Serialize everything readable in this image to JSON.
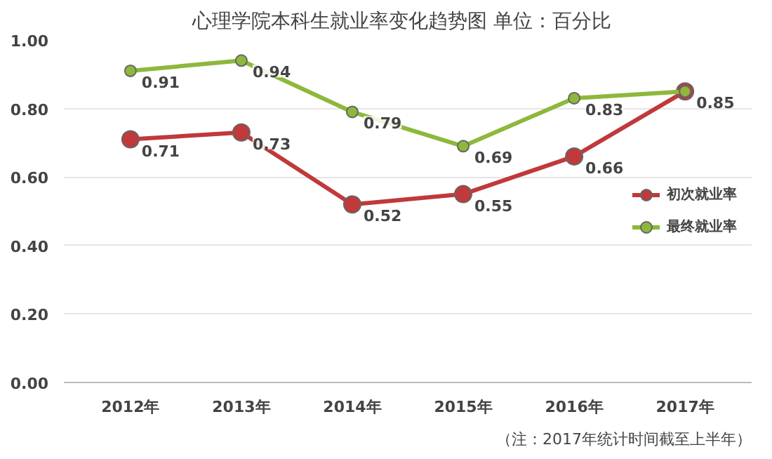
{
  "chart_data": {
    "type": "line",
    "title": "心理学院本科生就业率变化趋势图   单位：百分比",
    "categories": [
      "2012年",
      "2013年",
      "2014年",
      "2015年",
      "2016年",
      "2017年"
    ],
    "series": [
      {
        "name": "初次就业率",
        "color": "#c0393b",
        "values": [
          0.71,
          0.73,
          0.52,
          0.55,
          0.66,
          0.85
        ],
        "value_labels": [
          "0.71",
          "0.73",
          "0.52",
          "0.55",
          "0.66",
          null
        ]
      },
      {
        "name": "最终就业率",
        "color": "#8db83c",
        "values": [
          0.91,
          0.94,
          0.79,
          0.69,
          0.83,
          0.85
        ],
        "value_labels": [
          "0.91",
          "0.94",
          "0.79",
          "0.69",
          "0.83",
          "0.85"
        ]
      }
    ],
    "ylim": [
      0,
      1
    ],
    "yticks": [
      {
        "value": 0,
        "label": "0.00"
      },
      {
        "value": 0.2,
        "label": "0.20"
      },
      {
        "value": 0.4,
        "label": "0.40"
      },
      {
        "value": 0.6,
        "label": "0.60"
      },
      {
        "value": 0.8,
        "label": "0.80"
      },
      {
        "value": 1,
        "label": "1.00"
      }
    ],
    "grid": "y",
    "legend": "right",
    "marker": "circle",
    "line_style": "solid",
    "annotations": [
      "（注：2017年统计时间截至上半年）"
    ]
  }
}
